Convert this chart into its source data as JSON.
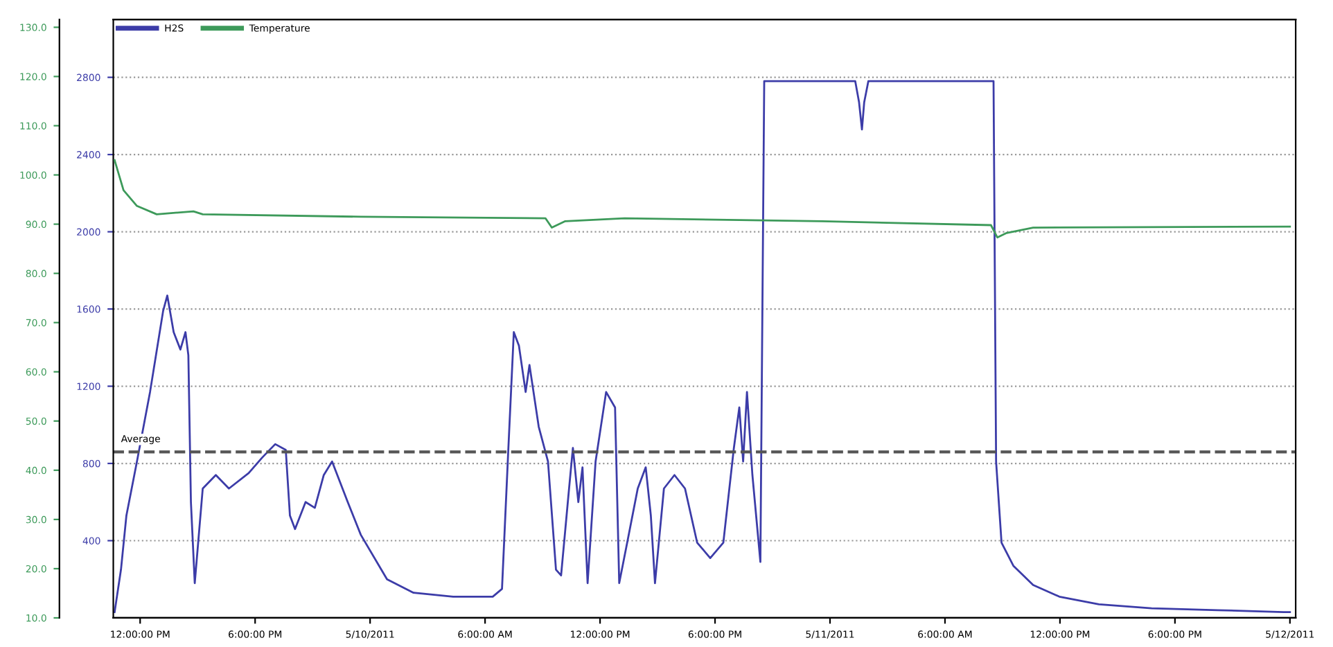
{
  "chart_data": {
    "type": "line",
    "series": [
      {
        "name": "H2S",
        "color": "#3c3ca8",
        "x": [
          "2011-05-09T10:40",
          "2011-05-09T11:00",
          "2011-05-09T11:17",
          "2011-05-09T11:50",
          "2011-05-09T12:31",
          "2011-05-09T13:12",
          "2011-05-09T13:25",
          "2011-05-09T13:45",
          "2011-05-09T14:06",
          "2011-05-09T14:22",
          "2011-05-09T14:31",
          "2011-05-09T14:39",
          "2011-05-09T14:51",
          "2011-05-09T15:16",
          "2011-05-09T15:57",
          "2011-05-09T16:38",
          "2011-05-09T17:40",
          "2011-05-09T18:22",
          "2011-05-09T19:03",
          "2011-05-09T19:36",
          "2011-05-09T19:49",
          "2011-05-09T20:05",
          "2011-05-09T20:38",
          "2011-05-09T21:07",
          "2011-05-09T21:35",
          "2011-05-09T22:01",
          "2011-05-09T22:50",
          "2011-05-09T23:31",
          "2011-05-10T00:53",
          "2011-05-10T02:16",
          "2011-05-10T04:20",
          "2011-05-10T06:24",
          "2011-05-10T06:53",
          "2011-05-10T07:13",
          "2011-05-10T07:30",
          "2011-05-10T07:46",
          "2011-05-10T08:07",
          "2011-05-10T08:19",
          "2011-05-10T08:48",
          "2011-05-10T09:17",
          "2011-05-10T09:42",
          "2011-05-10T09:58",
          "2011-05-10T10:23",
          "2011-05-10T10:35",
          "2011-05-10T10:52",
          "2011-05-10T11:05",
          "2011-05-10T11:21",
          "2011-05-10T11:46",
          "2011-05-10T12:19",
          "2011-05-10T12:47",
          "2011-05-10T13:00",
          "2011-05-10T13:25",
          "2011-05-10T13:58",
          "2011-05-10T14:23",
          "2011-05-10T14:39",
          "2011-05-10T14:52",
          "2011-05-10T15:20",
          "2011-05-10T15:53",
          "2011-05-10T16:26",
          "2011-05-10T17:04",
          "2011-05-10T17:45",
          "2011-05-10T18:26",
          "2011-05-10T18:59",
          "2011-05-10T19:16",
          "2011-05-10T19:28",
          "2011-05-10T19:40",
          "2011-05-10T19:57",
          "2011-05-10T20:22",
          "2011-05-10T20:34",
          "2011-05-11T01:19",
          "2011-05-11T01:31",
          "2011-05-11T01:40",
          "2011-05-11T01:47",
          "2011-05-11T02:00",
          "2011-05-11T08:32",
          "2011-05-11T08:40",
          "2011-05-11T08:57",
          "2011-05-11T09:34",
          "2011-05-11T10:36",
          "2011-05-11T11:58",
          "2011-05-11T14:02",
          "2011-05-11T16:47",
          "2011-05-11T20:14",
          "2011-05-11T23:40",
          "2011-05-12T00:00"
        ],
        "values": [
          30,
          250,
          530,
          810,
          1170,
          1590,
          1670,
          1480,
          1390,
          1480,
          1360,
          600,
          180,
          670,
          740,
          670,
          750,
          830,
          900,
          870,
          530,
          460,
          600,
          570,
          740,
          810,
          600,
          430,
          200,
          130,
          110,
          110,
          150,
          880,
          1480,
          1410,
          1170,
          1310,
          990,
          810,
          250,
          220,
          670,
          880,
          600,
          780,
          180,
          810,
          1170,
          1090,
          180,
          390,
          670,
          780,
          530,
          180,
          670,
          740,
          670,
          390,
          310,
          390,
          880,
          1090,
          810,
          1170,
          740,
          290,
          2780,
          2780,
          2670,
          2530,
          2670,
          2780,
          2780,
          810,
          390,
          270,
          170,
          110,
          70,
          50,
          40,
          30,
          30
        ]
      },
      {
        "name": "Temperature",
        "color": "#3d9a5a",
        "axis": "y2",
        "x": [
          "2011-05-09T10:40",
          "2011-05-09T11:08",
          "2011-05-09T11:50",
          "2011-05-09T12:52",
          "2011-05-09T14:47",
          "2011-05-09T15:16",
          "2011-05-09T23:31",
          "2011-05-10T09:09",
          "2011-05-10T09:29",
          "2011-05-10T10:11",
          "2011-05-10T13:17",
          "2011-05-10T23:35",
          "2011-05-11T08:24",
          "2011-05-11T08:44",
          "2011-05-11T09:13",
          "2011-05-11T10:36",
          "2011-05-12T00:00"
        ],
        "values": [
          103.0,
          96.9,
          93.7,
          92.0,
          92.6,
          92.0,
          91.5,
          91.2,
          89.3,
          90.6,
          91.2,
          90.6,
          89.8,
          87.3,
          88.2,
          89.3,
          89.5
        ]
      }
    ],
    "xlim": [
      "2011-05-09T10:36",
      "2011-05-12T00:18"
    ],
    "xticks": [
      {
        "value": "2011-05-09T12:00",
        "label": "12:00:00 PM"
      },
      {
        "value": "2011-05-09T18:00",
        "label": "6:00:00 PM"
      },
      {
        "value": "2011-05-10T00:00",
        "label": "5/10/2011"
      },
      {
        "value": "2011-05-10T06:00",
        "label": "6:00:00 AM"
      },
      {
        "value": "2011-05-10T12:00",
        "label": "12:00:00 PM"
      },
      {
        "value": "2011-05-10T18:00",
        "label": "6:00:00 PM"
      },
      {
        "value": "2011-05-11T00:00",
        "label": "5/11/2011"
      },
      {
        "value": "2011-05-11T06:00",
        "label": "6:00:00 AM"
      },
      {
        "value": "2011-05-11T12:00",
        "label": "12:00:00 PM"
      },
      {
        "value": "2011-05-11T18:00",
        "label": "6:00:00 PM"
      },
      {
        "value": "2011-05-12T00:00",
        "label": "5/12/2011"
      }
    ],
    "ylim": [
      0,
      3100
    ],
    "yticks": [
      400,
      800,
      1200,
      1600,
      2000,
      2400,
      2800
    ],
    "y2lim": [
      10,
      131.6
    ],
    "y2ticks": [
      {
        "value": 10,
        "label": "10.0"
      },
      {
        "value": 20,
        "label": "20.0"
      },
      {
        "value": 30,
        "label": "30.0"
      },
      {
        "value": 40,
        "label": "40.0"
      },
      {
        "value": 50,
        "label": "50.0"
      },
      {
        "value": 60,
        "label": "60.0"
      },
      {
        "value": 70,
        "label": "70.0"
      },
      {
        "value": 80,
        "label": "80.0"
      },
      {
        "value": 90,
        "label": "90.0"
      },
      {
        "value": 100,
        "label": "100.0"
      },
      {
        "value": 110,
        "label": "110.0"
      },
      {
        "value": 120,
        "label": "120.0"
      },
      {
        "value": 130,
        "label": "130.0"
      }
    ],
    "ref_lines": [
      {
        "axis": "y",
        "value": 860,
        "label": "Average",
        "color": "#555555",
        "line_style": "dashed"
      }
    ],
    "grid": "y",
    "legend": "top left",
    "line_style": "solid",
    "marker": "none"
  }
}
